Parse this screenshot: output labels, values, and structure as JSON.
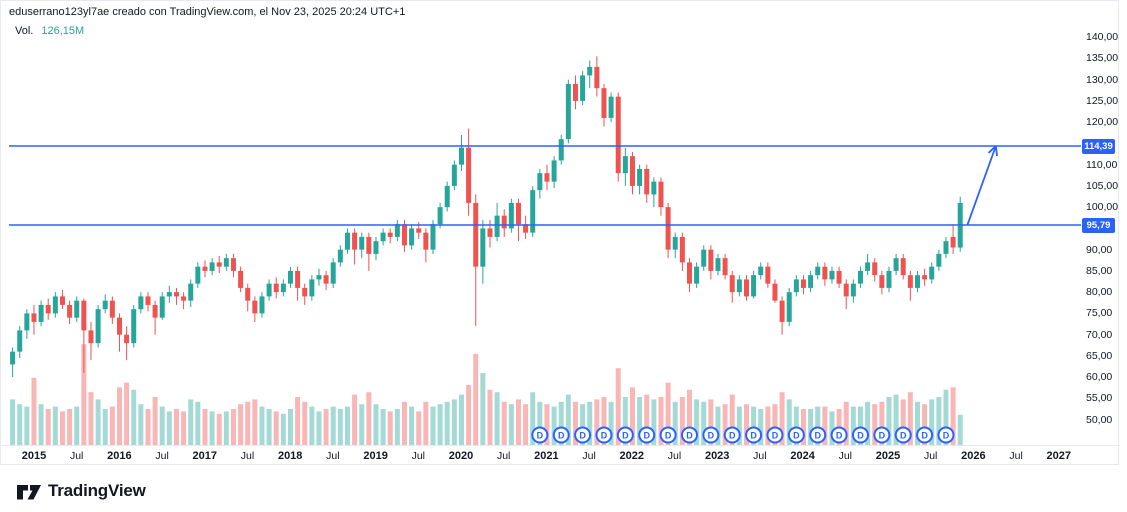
{
  "attribution": "eduserrano123yl7ae creado con TradingView.com, el Nov 23, 2025 20:24 UTC+1",
  "volume_legend": {
    "label": "Vol.",
    "value": "126,15M",
    "value_color": "#26a69a"
  },
  "footer": {
    "brand": "TradingView"
  },
  "colors": {
    "up": "#26a69a",
    "down": "#ef5350",
    "vol_up": "rgba(38,166,154,0.42)",
    "vol_down": "rgba(239,83,80,0.42)",
    "accent": "#2962ff",
    "text": "#131722",
    "axis_line": "#e7e9ee"
  },
  "price_axis": {
    "ticks": [
      {
        "value": 140,
        "label": "140,00"
      },
      {
        "value": 135,
        "label": "135,00"
      },
      {
        "value": 130,
        "label": "130,00"
      },
      {
        "value": 125,
        "label": "125,00"
      },
      {
        "value": 120,
        "label": "120,00"
      },
      {
        "value": 110,
        "label": "110,00"
      },
      {
        "value": 105,
        "label": "105,00"
      },
      {
        "value": 100,
        "label": "100,00"
      },
      {
        "value": 90,
        "label": "90,00"
      },
      {
        "value": 85,
        "label": "85,00"
      },
      {
        "value": 80,
        "label": "80,00"
      },
      {
        "value": 75,
        "label": "75,00"
      },
      {
        "value": 70,
        "label": "70,00"
      },
      {
        "value": 65,
        "label": "65,00"
      },
      {
        "value": 60,
        "label": "60,00"
      },
      {
        "value": 55,
        "label": "55,00"
      },
      {
        "value": 50,
        "label": "50,00"
      }
    ]
  },
  "time_axis": {
    "years": [
      "2015",
      "2016",
      "2017",
      "2018",
      "2019",
      "2020",
      "2021",
      "2022",
      "2023",
      "2024",
      "2025",
      "2026",
      "2027"
    ],
    "mid_label": "Jul"
  },
  "drawings": {
    "levels": [
      {
        "label": "114,39",
        "price": 114.39
      },
      {
        "label": "95,79",
        "price": 95.79
      }
    ],
    "arrow": {
      "from": {
        "month": "2025-12",
        "price": 95.79
      },
      "to": {
        "month": "2026-04",
        "price": 114.39
      }
    }
  },
  "dividends": {
    "label": "D",
    "months": [
      "2020-12",
      "2021-03",
      "2021-06",
      "2021-09",
      "2021-12",
      "2022-03",
      "2022-06",
      "2022-09",
      "2022-12",
      "2023-03",
      "2023-06",
      "2023-09",
      "2023-12",
      "2024-03",
      "2024-06",
      "2024-09",
      "2024-12",
      "2025-03",
      "2025-06",
      "2025-09"
    ]
  },
  "chart_data": {
    "type": "candlestick",
    "timeframe": "1M",
    "x_range": [
      "2014-10",
      "2027-12"
    ],
    "ylim": [
      47,
      142
    ],
    "volume_unit": "M",
    "last_volume": "126,15M",
    "candles_format": [
      "month",
      "open",
      "high",
      "low",
      "close",
      "volume_M"
    ],
    "candles": [
      [
        "2014-10",
        63,
        67,
        60,
        66,
        190
      ],
      [
        "2014-11",
        66,
        72,
        64.5,
        71,
        170
      ],
      [
        "2014-12",
        71,
        76,
        69,
        75,
        160
      ],
      [
        "2015-01",
        75,
        77,
        70,
        73,
        280
      ],
      [
        "2015-02",
        73,
        78,
        72,
        77,
        170
      ],
      [
        "2015-03",
        77,
        78.5,
        73.5,
        75,
        150
      ],
      [
        "2015-04",
        75,
        80,
        74,
        79,
        160
      ],
      [
        "2015-05",
        79,
        80.5,
        76,
        77,
        140
      ],
      [
        "2015-06",
        77,
        78,
        72.5,
        74,
        150
      ],
      [
        "2015-07",
        74,
        79,
        73,
        78,
        160
      ],
      [
        "2015-08",
        78,
        78.5,
        61,
        71,
        420
      ],
      [
        "2015-09",
        71,
        73,
        64,
        68,
        220
      ],
      [
        "2015-10",
        68,
        77,
        67,
        76,
        190
      ],
      [
        "2015-11",
        76,
        79.5,
        75,
        78,
        150
      ],
      [
        "2015-12",
        78,
        79,
        72.5,
        74,
        160
      ],
      [
        "2016-01",
        74,
        75,
        66,
        70,
        240
      ],
      [
        "2016-02",
        70,
        72,
        64,
        68,
        260
      ],
      [
        "2016-03",
        68,
        77,
        67,
        76,
        230
      ],
      [
        "2016-04",
        76,
        80,
        75,
        79,
        170
      ],
      [
        "2016-05",
        79,
        80,
        75.5,
        77,
        150
      ],
      [
        "2016-06",
        77,
        78,
        70,
        74,
        200
      ],
      [
        "2016-07",
        74,
        80,
        73.5,
        79,
        160
      ],
      [
        "2016-08",
        79,
        81.5,
        77.5,
        80,
        140
      ],
      [
        "2016-09",
        80,
        81,
        77,
        79,
        150
      ],
      [
        "2016-10",
        79,
        80,
        76,
        78,
        140
      ],
      [
        "2016-11",
        78,
        83,
        76.5,
        82,
        190
      ],
      [
        "2016-12",
        82,
        87,
        81,
        86,
        180
      ],
      [
        "2017-01",
        86,
        87.5,
        83.5,
        85,
        150
      ],
      [
        "2017-02",
        85,
        88,
        84,
        87,
        140
      ],
      [
        "2017-03",
        87,
        88.5,
        84.5,
        86,
        130
      ],
      [
        "2017-04",
        86,
        89,
        85,
        88,
        140
      ],
      [
        "2017-05",
        88,
        89,
        83.5,
        85,
        150
      ],
      [
        "2017-06",
        85,
        86,
        80,
        81,
        170
      ],
      [
        "2017-07",
        81,
        82,
        75.5,
        78,
        180
      ],
      [
        "2017-08",
        78,
        79,
        73,
        75,
        190
      ],
      [
        "2017-09",
        75,
        80,
        74,
        79,
        160
      ],
      [
        "2017-10",
        79,
        83,
        78,
        82,
        150
      ],
      [
        "2017-11",
        82,
        83.5,
        78.5,
        80,
        140
      ],
      [
        "2017-12",
        80,
        83,
        79,
        82,
        130
      ],
      [
        "2018-01",
        82,
        86,
        81,
        85,
        150
      ],
      [
        "2018-02",
        85,
        86,
        78,
        81,
        200
      ],
      [
        "2018-03",
        81,
        82,
        77,
        79,
        180
      ],
      [
        "2018-04",
        79,
        84,
        78,
        83,
        160
      ],
      [
        "2018-05",
        83,
        85.5,
        81.5,
        84,
        140
      ],
      [
        "2018-06",
        84,
        85,
        80.5,
        82,
        150
      ],
      [
        "2018-07",
        82,
        88,
        81,
        87,
        160
      ],
      [
        "2018-08",
        87,
        91,
        86,
        90,
        150
      ],
      [
        "2018-09",
        90,
        95,
        89,
        94,
        160
      ],
      [
        "2018-10",
        94,
        95,
        86.5,
        90,
        210
      ],
      [
        "2018-11",
        90,
        94,
        88,
        93,
        170
      ],
      [
        "2018-12",
        93,
        94,
        85,
        89,
        220
      ],
      [
        "2019-01",
        89,
        93,
        87.5,
        92,
        170
      ],
      [
        "2019-02",
        92,
        95,
        91,
        94,
        150
      ],
      [
        "2019-03",
        94,
        95,
        91.5,
        93,
        140
      ],
      [
        "2019-04",
        93,
        97,
        92,
        96,
        150
      ],
      [
        "2019-05",
        96,
        97,
        89.5,
        91,
        180
      ],
      [
        "2019-06",
        91,
        96,
        90,
        95,
        160
      ],
      [
        "2019-07",
        95,
        96.5,
        92.5,
        94,
        140
      ],
      [
        "2019-08",
        94,
        95,
        87,
        90,
        180
      ],
      [
        "2019-09",
        90,
        97,
        89,
        96,
        160
      ],
      [
        "2019-10",
        96,
        101,
        95,
        100,
        170
      ],
      [
        "2019-11",
        100,
        106,
        99,
        105,
        180
      ],
      [
        "2019-12",
        105,
        111,
        104,
        110,
        190
      ],
      [
        "2020-01",
        110,
        117,
        108.5,
        114,
        210
      ],
      [
        "2020-02",
        114,
        118.5,
        98,
        101,
        250
      ],
      [
        "2020-03",
        101,
        103,
        72,
        86,
        380
      ],
      [
        "2020-04",
        86,
        97,
        82,
        95,
        300
      ],
      [
        "2020-05",
        95,
        97,
        90.5,
        93,
        230
      ],
      [
        "2020-06",
        93,
        101,
        92,
        98,
        220
      ],
      [
        "2020-07",
        98,
        99.5,
        93,
        95,
        180
      ],
      [
        "2020-08",
        95,
        102,
        94,
        101,
        170
      ],
      [
        "2020-09",
        101,
        102,
        92,
        96,
        190
      ],
      [
        "2020-10",
        96,
        98,
        92.5,
        94,
        170
      ],
      [
        "2020-11",
        94,
        105,
        93,
        104,
        220
      ],
      [
        "2020-12",
        104,
        109,
        102,
        108,
        180
      ],
      [
        "2021-01",
        108,
        110,
        104,
        106,
        170
      ],
      [
        "2021-02",
        106,
        112,
        104.5,
        111,
        160
      ],
      [
        "2021-03",
        111,
        117,
        110,
        116,
        180
      ],
      [
        "2021-04",
        116,
        130,
        115,
        129,
        210
      ],
      [
        "2021-05",
        129,
        131,
        123,
        125,
        180
      ],
      [
        "2021-06",
        125,
        132,
        124,
        131,
        170
      ],
      [
        "2021-07",
        131,
        134.5,
        128,
        133,
        180
      ],
      [
        "2021-08",
        133,
        135.5,
        126,
        128,
        190
      ],
      [
        "2021-09",
        128,
        129,
        119,
        121,
        200
      ],
      [
        "2021-10",
        121,
        127,
        120,
        126,
        180
      ],
      [
        "2021-11",
        126,
        127,
        106,
        108,
        320
      ],
      [
        "2021-12",
        108,
        114,
        105,
        112,
        200
      ],
      [
        "2022-01",
        112,
        113,
        103,
        105,
        240
      ],
      [
        "2022-02",
        105,
        110,
        103,
        109,
        200
      ],
      [
        "2022-03",
        109,
        110,
        101,
        103,
        210
      ],
      [
        "2022-04",
        103,
        107,
        100,
        106,
        190
      ],
      [
        "2022-05",
        106,
        107,
        98,
        100,
        200
      ],
      [
        "2022-06",
        100,
        101,
        88,
        90,
        260
      ],
      [
        "2022-07",
        90,
        94,
        88,
        93,
        180
      ],
      [
        "2022-08",
        93,
        94,
        85,
        87,
        200
      ],
      [
        "2022-09",
        87,
        88,
        80,
        82,
        230
      ],
      [
        "2022-10",
        82,
        87,
        81,
        86,
        190
      ],
      [
        "2022-11",
        86,
        91,
        85,
        90,
        180
      ],
      [
        "2022-12",
        90,
        91,
        83,
        85,
        190
      ],
      [
        "2023-01",
        85,
        89,
        84,
        88,
        160
      ],
      [
        "2023-02",
        88,
        89,
        83,
        84,
        170
      ],
      [
        "2023-03",
        84,
        85,
        77.5,
        80,
        210
      ],
      [
        "2023-04",
        80,
        84,
        79,
        83,
        160
      ],
      [
        "2023-05",
        83,
        84,
        78,
        79,
        170
      ],
      [
        "2023-06",
        79,
        85,
        78.5,
        84,
        160
      ],
      [
        "2023-07",
        84,
        87,
        83,
        86,
        150
      ],
      [
        "2023-08",
        86,
        87,
        81,
        82,
        160
      ],
      [
        "2023-09",
        82,
        83,
        77.5,
        78,
        170
      ],
      [
        "2023-10",
        78,
        79,
        70,
        73,
        220
      ],
      [
        "2023-11",
        73,
        81,
        72,
        80,
        190
      ],
      [
        "2023-12",
        80,
        84,
        79,
        83,
        160
      ],
      [
        "2024-01",
        83,
        84,
        79.5,
        81,
        150
      ],
      [
        "2024-02",
        81,
        85,
        80,
        84,
        150
      ],
      [
        "2024-03",
        84,
        87,
        83,
        86,
        160
      ],
      [
        "2024-04",
        86,
        87,
        81.5,
        83,
        160
      ],
      [
        "2024-05",
        83,
        86,
        82,
        85,
        140
      ],
      [
        "2024-06",
        85,
        86,
        81,
        82,
        150
      ],
      [
        "2024-07",
        82,
        83,
        76,
        79,
        180
      ],
      [
        "2024-08",
        79,
        83,
        77.5,
        82,
        160
      ],
      [
        "2024-09",
        82,
        86,
        81,
        85,
        160
      ],
      [
        "2024-10",
        85,
        89,
        84,
        87,
        180
      ],
      [
        "2024-11",
        87,
        88,
        82.5,
        84,
        170
      ],
      [
        "2024-12",
        84,
        85,
        79.5,
        81,
        180
      ],
      [
        "2025-01",
        81,
        86,
        80,
        85,
        200
      ],
      [
        "2025-02",
        85,
        89,
        84,
        88,
        210
      ],
      [
        "2025-03",
        88,
        89,
        83,
        84,
        190
      ],
      [
        "2025-04",
        84,
        85,
        78,
        81,
        220
      ],
      [
        "2025-05",
        81,
        85,
        80,
        84,
        180
      ],
      [
        "2025-06",
        84,
        85.5,
        81.5,
        83,
        170
      ],
      [
        "2025-07",
        83,
        87,
        82,
        86,
        190
      ],
      [
        "2025-08",
        86,
        90,
        85,
        89,
        200
      ],
      [
        "2025-09",
        89,
        93,
        88,
        92,
        230
      ],
      [
        "2025-10",
        93,
        96,
        89,
        90.5,
        240
      ],
      [
        "2025-11",
        90.5,
        102.5,
        89.5,
        101,
        126.15
      ]
    ]
  }
}
